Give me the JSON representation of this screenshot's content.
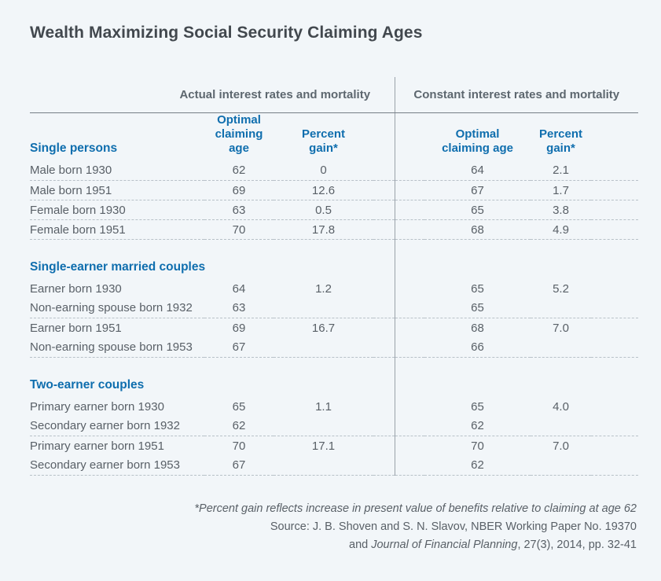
{
  "title": "Wealth Maximizing Social Security Claiming Ages",
  "chart_data": {
    "type": "table",
    "group_headers": [
      "Actual interest rates and mortality",
      "Constant interest rates and mortality"
    ],
    "column_headers": {
      "optimal": {
        "line1": "Optimal",
        "line2": "claiming age"
      },
      "percent": {
        "line1": "Percent",
        "line2": "gain*"
      }
    },
    "sections": [
      {
        "title": "Single persons",
        "rows": [
          {
            "label": "Male born 1930",
            "actual_optimal_age": "62",
            "actual_percent_gain": "0",
            "constant_optimal_age": "64",
            "constant_percent_gain": "2.1",
            "sep": true
          },
          {
            "label": "Male born 1951",
            "actual_optimal_age": "69",
            "actual_percent_gain": "12.6",
            "constant_optimal_age": "67",
            "constant_percent_gain": "1.7",
            "sep": true
          },
          {
            "label": "Female born 1930",
            "actual_optimal_age": "63",
            "actual_percent_gain": "0.5",
            "constant_optimal_age": "65",
            "constant_percent_gain": "3.8",
            "sep": true
          },
          {
            "label": "Female born 1951",
            "actual_optimal_age": "70",
            "actual_percent_gain": "17.8",
            "constant_optimal_age": "68",
            "constant_percent_gain": "4.9",
            "sep": true
          }
        ]
      },
      {
        "title": "Single-earner married couples",
        "rows": [
          {
            "label": "Earner born 1930",
            "actual_optimal_age": "64",
            "actual_percent_gain": "1.2",
            "constant_optimal_age": "65",
            "constant_percent_gain": "5.2",
            "sep": false
          },
          {
            "label": "Non-earning spouse born 1932",
            "actual_optimal_age": "63",
            "actual_percent_gain": "",
            "constant_optimal_age": "65",
            "constant_percent_gain": "",
            "sep": true
          },
          {
            "label": "Earner born 1951",
            "actual_optimal_age": "69",
            "actual_percent_gain": "16.7",
            "constant_optimal_age": "68",
            "constant_percent_gain": "7.0",
            "sep": false
          },
          {
            "label": "Non-earning spouse born 1953",
            "actual_optimal_age": "67",
            "actual_percent_gain": "",
            "constant_optimal_age": "66",
            "constant_percent_gain": "",
            "sep": true
          }
        ]
      },
      {
        "title": "Two-earner couples",
        "rows": [
          {
            "label": "Primary earner born 1930",
            "actual_optimal_age": "65",
            "actual_percent_gain": "1.1",
            "constant_optimal_age": "65",
            "constant_percent_gain": "4.0",
            "sep": false
          },
          {
            "label": "Secondary earner born 1932",
            "actual_optimal_age": "62",
            "actual_percent_gain": "",
            "constant_optimal_age": "62",
            "constant_percent_gain": "",
            "sep": true
          },
          {
            "label": "Primary earner born 1951",
            "actual_optimal_age": "70",
            "actual_percent_gain": "17.1",
            "constant_optimal_age": "70",
            "constant_percent_gain": "7.0",
            "sep": false
          },
          {
            "label": "Secondary earner born 1953",
            "actual_optimal_age": "67",
            "actual_percent_gain": "",
            "constant_optimal_age": "62",
            "constant_percent_gain": "",
            "sep": true
          }
        ]
      }
    ]
  },
  "footer": {
    "footnote": "*Percent gain reflects increase in present value of benefits relative to claiming at age 62",
    "source1": "Source: J. B. Shoven and S. N. Slavov, NBER Working Paper No. 19370",
    "source2_prefix": "and ",
    "source2_italic": "Journal of Financial Planning",
    "source2_suffix": ", 27(3), 2014, pp. 32-41"
  },
  "colors": {
    "background": "#f2f6f9",
    "accent_blue": "#0f6eae",
    "title_text": "#42484e",
    "body_text": "#596067",
    "group_header_text": "#5d676f",
    "solid_rule": "#767e86",
    "group_divider": "#9aa2aa",
    "dotted_rule": "#b8c1c8"
  }
}
